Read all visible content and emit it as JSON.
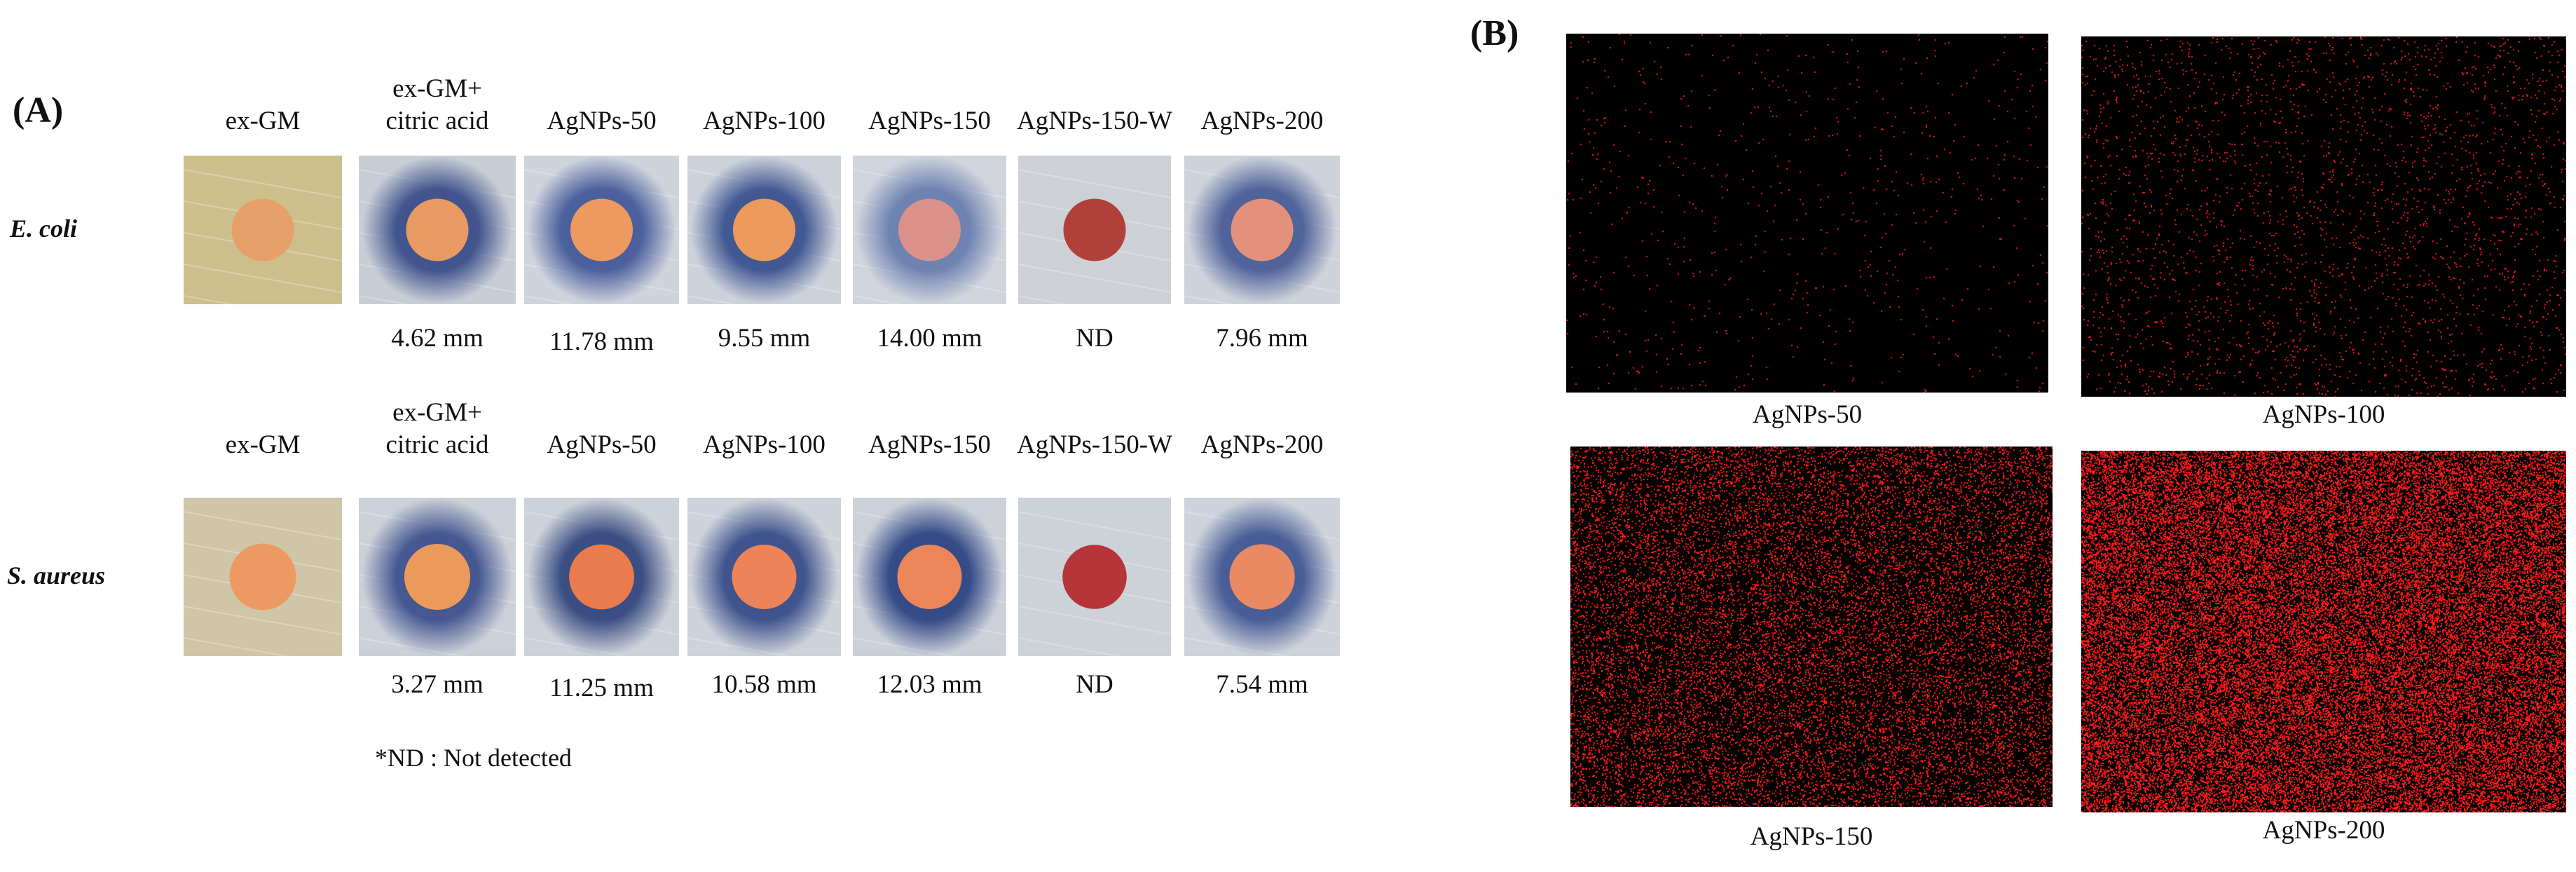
{
  "panel_a": {
    "label": "(A)",
    "rows": [
      {
        "name": "E. coli",
        "columns": [
          {
            "label": "ex-GM",
            "measurement": "",
            "bg": "#cdbf8c",
            "zone": "none",
            "disk": "#e8a06a"
          },
          {
            "label": "ex-GM+\ncitric acid",
            "measurement": "4.62 mm",
            "bg": "#c9ced6",
            "zone": "#3b4f8a",
            "disk": "#e99a62"
          },
          {
            "label": "AgNPs-50",
            "measurement": "11.78 mm",
            "bg": "#cfd3dc",
            "zone": "#455a9a",
            "disk": "#ec9a5f"
          },
          {
            "label": "AgNPs-100",
            "measurement": "9.55 mm",
            "bg": "#cdd2da",
            "zone": "#3c5390",
            "disk": "#ec9a5c"
          },
          {
            "label": "AgNPs-150",
            "measurement": "14.00 mm",
            "bg": "#d0d4dc",
            "zone": "#6a7fb0",
            "disk": "#d9918a"
          },
          {
            "label": "AgNPs-150-W",
            "measurement": "ND",
            "bg": "#cdd1d6",
            "zone": "none",
            "disk": "#b2403a"
          },
          {
            "label": "AgNPs-200",
            "measurement": "7.96 mm",
            "bg": "#ced2da",
            "zone": "#4a5e98",
            "disk": "#e4917c"
          }
        ]
      },
      {
        "name": "S. aureus",
        "columns": [
          {
            "label": "ex-GM",
            "measurement": "",
            "bg": "#cfc6a8",
            "zone": "none",
            "disk": "#ec9a62"
          },
          {
            "label": "ex-GM+\ncitric acid",
            "measurement": "3.27 mm",
            "bg": "#ccd0d8",
            "zone": "#3f528e",
            "disk": "#ec9a5c"
          },
          {
            "label": "AgNPs-50",
            "measurement": "11.25 mm",
            "bg": "#cdd1d9",
            "zone": "#34487f",
            "disk": "#ea7b4c"
          },
          {
            "label": "AgNPs-100",
            "measurement": "10.58 mm",
            "bg": "#ced2da",
            "zone": "#394e8a",
            "disk": "#ec8457"
          },
          {
            "label": "AgNPs-150",
            "measurement": "12.03 mm",
            "bg": "#cbd0d9",
            "zone": "#2e4583",
            "disk": "#ec8658"
          },
          {
            "label": "AgNPs-150-W",
            "measurement": "ND",
            "bg": "#cdd1d8",
            "zone": "none",
            "disk": "#b53538"
          },
          {
            "label": "AgNPs-200",
            "measurement": "7.54 mm",
            "bg": "#ced2da",
            "zone": "#425894",
            "disk": "#ea8a63"
          }
        ]
      }
    ],
    "footnote": "*ND : Not detected"
  },
  "panel_b": {
    "label": "(B)",
    "maps": [
      {
        "label": "AgNPs-50",
        "density": 0.008
      },
      {
        "label": "AgNPs-100",
        "density": 0.03
      },
      {
        "label": "AgNPs-150",
        "density": 0.2
      },
      {
        "label": "AgNPs-200",
        "density": 0.5
      }
    ],
    "dot_color": "#ff1a1a",
    "map_bg": "#000000"
  }
}
